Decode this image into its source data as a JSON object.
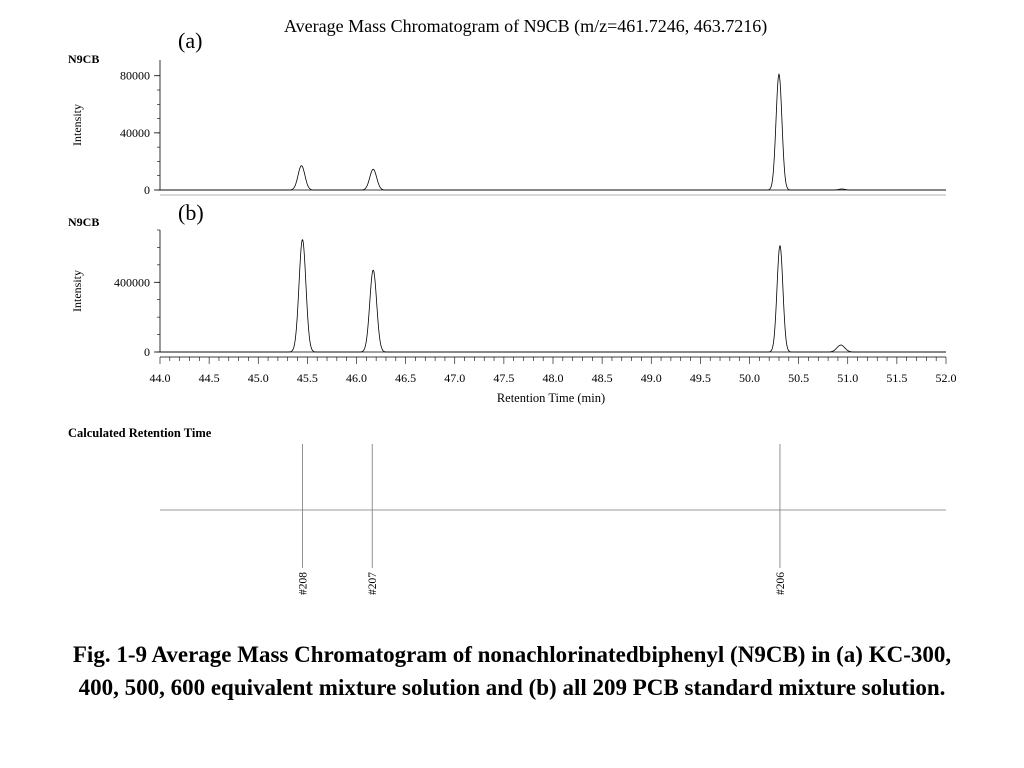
{
  "figure": {
    "main_title": "Average Mass Chromatogram of N9CB (m/z=461.7246, 463.7216)",
    "caption": "Fig. 1-9  Average Mass Chromatogram of nonachlorinatedbiphenyl (N9CB) in (a) KC-300, 400, 500, 600 equivalent mixture solution and (b) all 209 PCB standard mixture solution.",
    "calc_title": "Calculated Retention Time"
  },
  "chart_data": [
    {
      "type": "line",
      "panel_label": "(a)",
      "compound": "N9CB",
      "ylabel": "Intensity",
      "xlabel": "",
      "xlim": [
        44.0,
        52.0
      ],
      "ylim": [
        0,
        84000
      ],
      "yticks": [
        0,
        40000,
        80000
      ],
      "ytick_labels": [
        "0",
        "40000",
        "80000"
      ],
      "series": [
        {
          "peaks": [
            {
              "rt": 45.44,
              "height": 17000,
              "width": 0.035
            },
            {
              "rt": 46.17,
              "height": 14500,
              "width": 0.035
            },
            {
              "rt": 50.3,
              "height": 81000,
              "width": 0.03
            },
            {
              "rt": 50.94,
              "height": 700,
              "width": 0.03
            }
          ]
        }
      ]
    },
    {
      "type": "line",
      "panel_label": "(b)",
      "compound": "N9CB",
      "ylabel": "Intensity",
      "xlabel": "Retention Time (min)",
      "xlim": [
        44.0,
        52.0
      ],
      "ylim": [
        0,
        700000
      ],
      "yticks": [
        0,
        400000
      ],
      "ytick_labels": [
        "0",
        "400000"
      ],
      "xticks": [
        44.0,
        44.5,
        45.0,
        45.5,
        46.0,
        46.5,
        47.0,
        47.5,
        48.0,
        48.5,
        49.0,
        49.5,
        50.0,
        50.5,
        51.0,
        51.5,
        52.0
      ],
      "xtick_labels": [
        "44.0",
        "44.5",
        "45.0",
        "45.5",
        "46.0",
        "46.5",
        "47.0",
        "47.5",
        "48.0",
        "48.5",
        "49.0",
        "49.5",
        "50.0",
        "50.5",
        "51.0",
        "51.5",
        "52.0"
      ],
      "series": [
        {
          "peaks": [
            {
              "rt": 45.45,
              "height": 645000,
              "width": 0.035
            },
            {
              "rt": 46.17,
              "height": 470000,
              "width": 0.035
            },
            {
              "rt": 50.31,
              "height": 610000,
              "width": 0.03
            },
            {
              "rt": 50.93,
              "height": 40000,
              "width": 0.04
            }
          ]
        }
      ]
    },
    {
      "type": "line",
      "title": "Calculated Retention Time",
      "xlim": [
        44.0,
        52.0
      ],
      "markers": [
        {
          "rt": 45.45,
          "label": "#208"
        },
        {
          "rt": 46.16,
          "label": "#207"
        },
        {
          "rt": 50.31,
          "label": "#206"
        }
      ]
    }
  ]
}
